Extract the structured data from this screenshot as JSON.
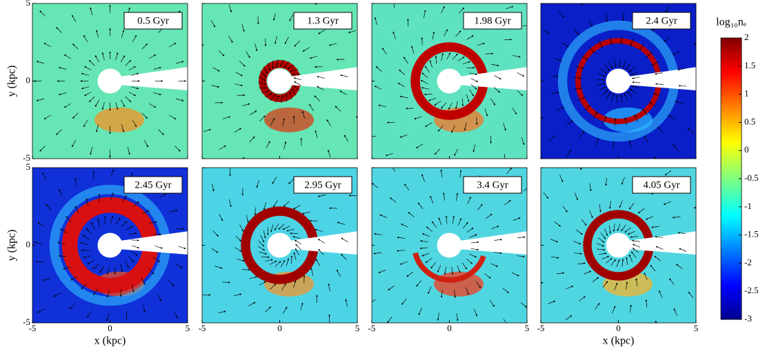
{
  "chart_data": {
    "type": "image-grid",
    "panels": [
      {
        "label": "0.5 Gyr"
      },
      {
        "label": "1.3 Gyr"
      },
      {
        "label": "1.98 Gyr"
      },
      {
        "label": "2.4 Gyr"
      },
      {
        "label": "2.45 Gyr"
      },
      {
        "label": "2.95 Gyr"
      },
      {
        "label": "3.4 Gyr"
      },
      {
        "label": "4.05 Gyr"
      }
    ],
    "xlabel": "x (kpc)",
    "ylabel": "y (kpc)",
    "xlim": [
      -5,
      5
    ],
    "ylim": [
      -5,
      5
    ],
    "xticks": [
      -5,
      0,
      5
    ],
    "yticks": [
      -5,
      0,
      5
    ],
    "colorbar": {
      "label": "log₁₀nₑ",
      "lim": [
        -3,
        2
      ],
      "ticks": [
        2,
        1.5,
        1,
        0.5,
        0,
        -0.5,
        -1,
        -1.5,
        -2,
        -2.5,
        -3
      ],
      "colormap": "jet"
    }
  }
}
